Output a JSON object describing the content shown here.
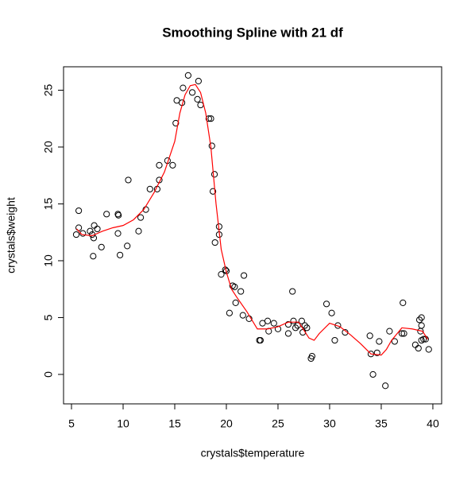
{
  "chart_data": {
    "type": "scatter",
    "title": "Smoothing Spline with 21 df",
    "x_label": "crystals$temperature",
    "y_label": "crystals$weight",
    "xlim": [
      4.23,
      40.85
    ],
    "ylim": [
      -2.59,
      27.06
    ],
    "xticks": [
      5,
      10,
      15,
      20,
      25,
      30,
      35,
      40
    ],
    "yticks": [
      0,
      5,
      10,
      15,
      20,
      25
    ],
    "series": [
      {
        "type": "points",
        "color": "#000000",
        "x": [
          5.46,
          5.7,
          5.7,
          6.1,
          6.8,
          7.0,
          7.1,
          7.15,
          7.2,
          7.5,
          7.9,
          8.4,
          9.5,
          9.55,
          9.5,
          9.7,
          10.4,
          10.5,
          11.5,
          11.7,
          12.2,
          12.6,
          13.3,
          13.5,
          13.5,
          14.3,
          14.8,
          15.1,
          15.2,
          15.7,
          15.8,
          16.3,
          16.7,
          17.2,
          17.3,
          17.5,
          18.3,
          18.5,
          18.6,
          18.7,
          18.85,
          18.9,
          19.3,
          19.3,
          19.5,
          19.9,
          20.0,
          20.3,
          20.6,
          20.8,
          20.9,
          21.4,
          21.7,
          21.6,
          22.2,
          23.2,
          23.3,
          23.5,
          24.0,
          24.1,
          24.6,
          25.0,
          26.0,
          26.0,
          26.4,
          26.5,
          26.7,
          26.9,
          27.3,
          27.4,
          27.6,
          27.8,
          28.3,
          28.2,
          29.7,
          30.2,
          30.5,
          30.8,
          31.5,
          33.9,
          34.0,
          34.2,
          34.6,
          34.8,
          35.4,
          35.8,
          36.3,
          37.1,
          37.0,
          37.2,
          38.3,
          38.7,
          38.8,
          38.9,
          38.9,
          38.6,
          38.9,
          39.1,
          39.3,
          39.6
        ],
        "y": [
          12.3,
          14.4,
          12.9,
          12.4,
          12.6,
          12.3,
          10.4,
          12.0,
          13.1,
          12.8,
          11.2,
          14.1,
          14.1,
          14.0,
          12.4,
          10.5,
          11.3,
          17.1,
          12.6,
          13.8,
          14.5,
          16.3,
          16.3,
          17.1,
          18.4,
          18.8,
          18.4,
          22.1,
          24.1,
          23.9,
          25.2,
          26.3,
          24.8,
          24.2,
          25.8,
          23.7,
          22.5,
          22.5,
          20.1,
          16.1,
          17.6,
          11.6,
          13.0,
          12.3,
          8.8,
          9.2,
          9.1,
          5.4,
          7.8,
          7.7,
          6.3,
          7.3,
          8.7,
          5.2,
          4.9,
          3.0,
          3.0,
          4.5,
          4.7,
          3.8,
          4.5,
          4.0,
          3.6,
          4.4,
          7.3,
          4.7,
          4.1,
          4.3,
          4.7,
          3.7,
          4.3,
          4.1,
          1.6,
          1.4,
          6.2,
          5.4,
          3.0,
          4.3,
          3.7,
          3.4,
          1.8,
          0.0,
          1.9,
          2.9,
          -1.0,
          3.8,
          2.9,
          6.3,
          3.6,
          3.6,
          2.6,
          4.8,
          3.8,
          4.3,
          5.0,
          2.3,
          3.0,
          3.1,
          3.1,
          2.2
        ]
      },
      {
        "type": "line",
        "color": "#ff0000",
        "x": [
          5.5,
          6,
          7,
          8,
          9,
          10,
          11,
          12,
          13,
          14,
          15,
          15.5,
          16,
          16.5,
          17,
          17.5,
          18,
          18.5,
          19,
          19.5,
          20,
          20.5,
          21,
          22,
          23,
          24,
          25,
          26,
          27,
          28,
          28.5,
          29,
          30,
          31,
          32,
          33,
          34,
          35,
          35.5,
          36,
          37,
          38,
          39,
          39.5
        ],
        "y": [
          12.8,
          12.3,
          12.2,
          12.6,
          12.9,
          13.1,
          13.6,
          14.5,
          16.0,
          17.8,
          20.5,
          23,
          24.6,
          25.4,
          25.5,
          24.8,
          23.0,
          20,
          15,
          11,
          9.0,
          7.5,
          6.8,
          5.5,
          4.0,
          4.0,
          4.2,
          4.6,
          4.6,
          3.2,
          3.0,
          3.6,
          4.5,
          4.2,
          3.5,
          2.7,
          1.8,
          1.7,
          2.2,
          3.0,
          4.1,
          4.0,
          3.8,
          3.1
        ]
      }
    ]
  }
}
